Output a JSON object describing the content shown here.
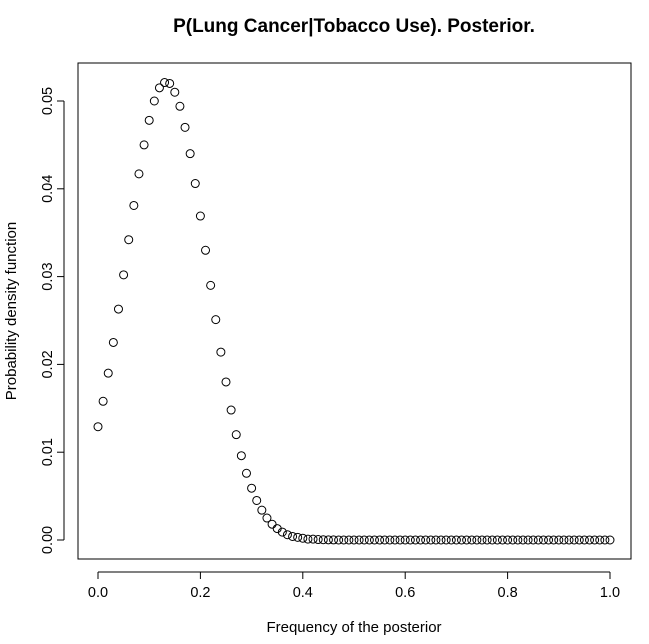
{
  "chart_data": {
    "type": "scatter",
    "title": "P(Lung Cancer|Tobacco Use). Posterior.",
    "xlabel": "Frequency of the posterior",
    "ylabel": "Probability density function",
    "xlim": [
      0.0,
      1.0
    ],
    "ylim": [
      0.0,
      0.052
    ],
    "x_ticks": [
      0.0,
      0.2,
      0.4,
      0.6,
      0.8,
      1.0
    ],
    "x_tick_labels": [
      "0.0",
      "0.2",
      "0.4",
      "0.6",
      "0.8",
      "1.0"
    ],
    "y_ticks": [
      0.0,
      0.01,
      0.02,
      0.03,
      0.04,
      0.05
    ],
    "y_tick_labels": [
      "0.00",
      "0.01",
      "0.02",
      "0.03",
      "0.04",
      "0.05"
    ],
    "marker": "open-circle",
    "grid": false,
    "series": [
      {
        "name": "posterior",
        "x": [
          0.0,
          0.01,
          0.02,
          0.03,
          0.04,
          0.05,
          0.06,
          0.07,
          0.08,
          0.09,
          0.1,
          0.11,
          0.12,
          0.13,
          0.14,
          0.15,
          0.16,
          0.17,
          0.18,
          0.19,
          0.2,
          0.21,
          0.22,
          0.23,
          0.24,
          0.25,
          0.26,
          0.27,
          0.28,
          0.29,
          0.3,
          0.31,
          0.32,
          0.33,
          0.34,
          0.35,
          0.36,
          0.37,
          0.38,
          0.39,
          0.4,
          0.41,
          0.42,
          0.43,
          0.44,
          0.45,
          0.46,
          0.47,
          0.48,
          0.49,
          0.5,
          0.51,
          0.52,
          0.53,
          0.54,
          0.55,
          0.56,
          0.57,
          0.58,
          0.59,
          0.6,
          0.61,
          0.62,
          0.63,
          0.64,
          0.65,
          0.66,
          0.67,
          0.68,
          0.69,
          0.7,
          0.71,
          0.72,
          0.73,
          0.74,
          0.75,
          0.76,
          0.77,
          0.78,
          0.79,
          0.8,
          0.81,
          0.82,
          0.83,
          0.84,
          0.85,
          0.86,
          0.87,
          0.88,
          0.89,
          0.9,
          0.91,
          0.92,
          0.93,
          0.94,
          0.95,
          0.96,
          0.97,
          0.98,
          0.99,
          1.0
        ],
        "y": [
          0.0129,
          0.0158,
          0.019,
          0.0225,
          0.0263,
          0.0302,
          0.0342,
          0.0381,
          0.0417,
          0.045,
          0.0478,
          0.05,
          0.0515,
          0.0521,
          0.052,
          0.051,
          0.0494,
          0.047,
          0.044,
          0.0406,
          0.0369,
          0.033,
          0.029,
          0.0251,
          0.0214,
          0.018,
          0.0148,
          0.012,
          0.0096,
          0.0076,
          0.0059,
          0.0045,
          0.0034,
          0.0025,
          0.0018,
          0.0013,
          0.0009,
          0.0006,
          0.0004,
          0.0003,
          0.0002,
          0.0001,
          0.0001,
          5e-05,
          3e-05,
          2e-05,
          1e-05,
          0.0,
          0.0,
          0.0,
          0.0,
          0.0,
          0.0,
          0.0,
          0.0,
          0.0,
          0.0,
          0.0,
          0.0,
          0.0,
          0.0,
          0.0,
          0.0,
          0.0,
          0.0,
          0.0,
          0.0,
          0.0,
          0.0,
          0.0,
          0.0,
          0.0,
          0.0,
          0.0,
          0.0,
          0.0,
          0.0,
          0.0,
          0.0,
          0.0,
          0.0,
          0.0,
          0.0,
          0.0,
          0.0,
          0.0,
          0.0,
          0.0,
          0.0,
          0.0,
          0.0,
          0.0,
          0.0,
          0.0,
          0.0,
          0.0,
          0.0,
          0.0,
          0.0,
          0.0,
          0.0
        ]
      }
    ]
  }
}
